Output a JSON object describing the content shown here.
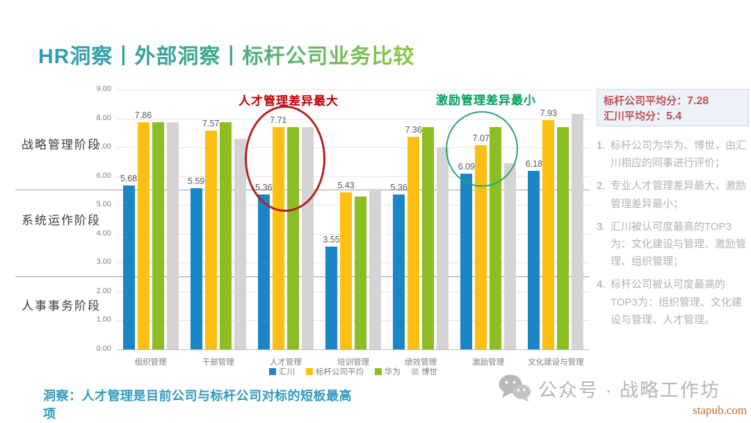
{
  "slide": {
    "title": "HR洞察丨外部洞察丨标杆公司业务比较",
    "insight": "洞察：人才管理是目前公司与标杆公司对标的短板最高项"
  },
  "stages": [
    "战略管理阶段",
    "系统运作阶段",
    "人事事务阶段"
  ],
  "chart_data": {
    "type": "bar",
    "categories": [
      "组织管理",
      "干部管理",
      "人才管理",
      "培训管理",
      "绩效管理",
      "激励管理",
      "文化建设与管理"
    ],
    "series": [
      {
        "name": "汇川",
        "color": "#1a86c8",
        "labeled": true,
        "values": [
          5.68,
          5.59,
          5.36,
          3.55,
          5.36,
          6.09,
          6.18
        ]
      },
      {
        "name": "标杆公司平均",
        "color": "#fdbf12",
        "labeled": true,
        "values": [
          7.86,
          7.57,
          7.71,
          5.43,
          7.36,
          7.07,
          7.93
        ]
      },
      {
        "name": "华为",
        "color": "#8cbd22",
        "labeled": false,
        "values": [
          7.86,
          7.86,
          7.71,
          5.29,
          7.71,
          7.71,
          7.71
        ]
      },
      {
        "name": "博世",
        "color": "#d4d4d4",
        "labeled": false,
        "values": [
          7.86,
          7.28,
          7.71,
          5.55,
          7.0,
          6.45,
          8.15
        ]
      }
    ],
    "ylim": [
      0,
      9
    ],
    "ytick_step": 1,
    "grid": true,
    "legend_position": "bottom",
    "annotations": [
      {
        "text": "人才管理差异最大",
        "color": "#c00000",
        "target": "人才管理"
      },
      {
        "text": "激励管理差异最小",
        "color": "#00a05a",
        "target": "激励管理"
      }
    ],
    "stage_divider_values": [
      5.5,
      2.5
    ]
  },
  "summary_box": {
    "line1_label": "标杆公司平均分：",
    "line1_value": "7.28",
    "line2_label": "汇川平均分：",
    "line2_value": "5.4"
  },
  "notes": [
    {
      "num": "1.",
      "text": "标杆公司为华为、博世，由汇川相应的同事进行评价；"
    },
    {
      "num": "2.",
      "text": "专业人才管理差异最大，激励管理差异最小；"
    },
    {
      "num": "3.",
      "text": "汇川被认可度最高的TOP3为：文化建设与管理、激励管理、组织管理；"
    },
    {
      "num": "4.",
      "text": "标杆公司被认可度最高的TOP3为：组织管理、文化建设与管理、人才管理。"
    }
  ],
  "watermark": {
    "text": "公众号 · 战略工作坊",
    "site": "stapub.com"
  }
}
